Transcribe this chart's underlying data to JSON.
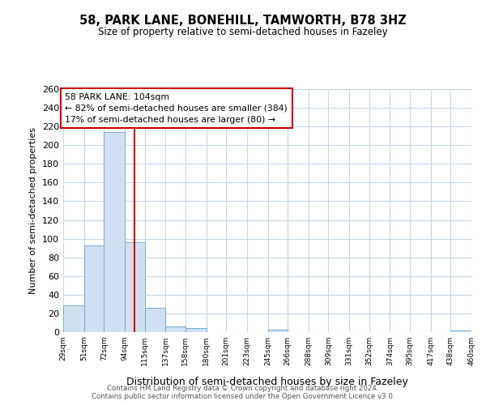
{
  "title": "58, PARK LANE, BONEHILL, TAMWORTH, B78 3HZ",
  "subtitle": "Size of property relative to semi-detached houses in Fazeley",
  "xlabel": "Distribution of semi-detached houses by size in Fazeley",
  "ylabel": "Number of semi-detached properties",
  "bar_color": "#d0e0f0",
  "bar_edge_color": "#7aaacf",
  "property_value": 104,
  "property_line_color": "#cc0000",
  "annotation_line1": "58 PARK LANE: 104sqm",
  "annotation_line2": "← 82% of semi-detached houses are smaller (384)",
  "annotation_line3": "17% of semi-detached houses are larger (80) →",
  "annotation_box_color": "#cc0000",
  "bins": [
    29,
    51,
    72,
    94,
    115,
    137,
    158,
    180,
    201,
    223,
    245,
    266,
    288,
    309,
    331,
    352,
    374,
    395,
    417,
    438,
    460
  ],
  "counts": [
    29,
    93,
    214,
    96,
    26,
    6,
    4,
    0,
    0,
    0,
    3,
    0,
    0,
    0,
    0,
    0,
    0,
    0,
    0,
    2
  ],
  "ylim": [
    0,
    260
  ],
  "yticks": [
    0,
    20,
    40,
    60,
    80,
    100,
    120,
    140,
    160,
    180,
    200,
    220,
    240,
    260
  ],
  "footer1": "Contains HM Land Registry data © Crown copyright and database right 2024.",
  "footer2": "Contains public sector information licensed under the Open Government Licence v3.0.",
  "background_color": "#ffffff",
  "grid_color": "#c8d8e8",
  "figure_bg": "#ffffff"
}
